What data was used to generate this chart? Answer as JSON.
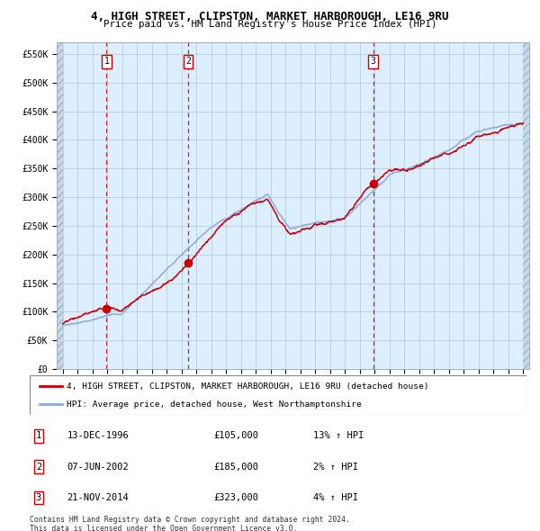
{
  "title": "4, HIGH STREET, CLIPSTON, MARKET HARBOROUGH, LE16 9RU",
  "subtitle": "Price paid vs. HM Land Registry's House Price Index (HPI)",
  "ylim": [
    0,
    570000
  ],
  "yticks": [
    0,
    50000,
    100000,
    150000,
    200000,
    250000,
    300000,
    350000,
    400000,
    450000,
    500000,
    550000
  ],
  "ytick_labels": [
    "£0",
    "£50K",
    "£100K",
    "£150K",
    "£200K",
    "£250K",
    "£300K",
    "£350K",
    "£400K",
    "£450K",
    "£500K",
    "£550K"
  ],
  "xlim_start": 1993.6,
  "xlim_end": 2025.4,
  "sale_dates": [
    1996.95,
    2002.44,
    2014.9
  ],
  "sale_prices": [
    105000,
    185000,
    323000
  ],
  "sale_labels": [
    "1",
    "2",
    "3"
  ],
  "vline_color": "#cc0000",
  "dot_color": "#cc0000",
  "hpi_line_color": "#88aadd",
  "price_line_color": "#cc0000",
  "bg_color": "#ddeeff",
  "grid_color": "#bbccdd",
  "legend1": "4, HIGH STREET, CLIPSTON, MARKET HARBOROUGH, LE16 9RU (detached house)",
  "legend2": "HPI: Average price, detached house, West Northamptonshire",
  "table_rows": [
    [
      "1",
      "13-DEC-1996",
      "£105,000",
      "13% ↑ HPI"
    ],
    [
      "2",
      "07-JUN-2002",
      "£185,000",
      "2% ↑ HPI"
    ],
    [
      "3",
      "21-NOV-2014",
      "£323,000",
      "4% ↑ HPI"
    ]
  ],
  "footnote": "Contains HM Land Registry data © Crown copyright and database right 2024.\nThis data is licensed under the Open Government Licence v3.0.",
  "font_family": "DejaVu Sans Mono"
}
